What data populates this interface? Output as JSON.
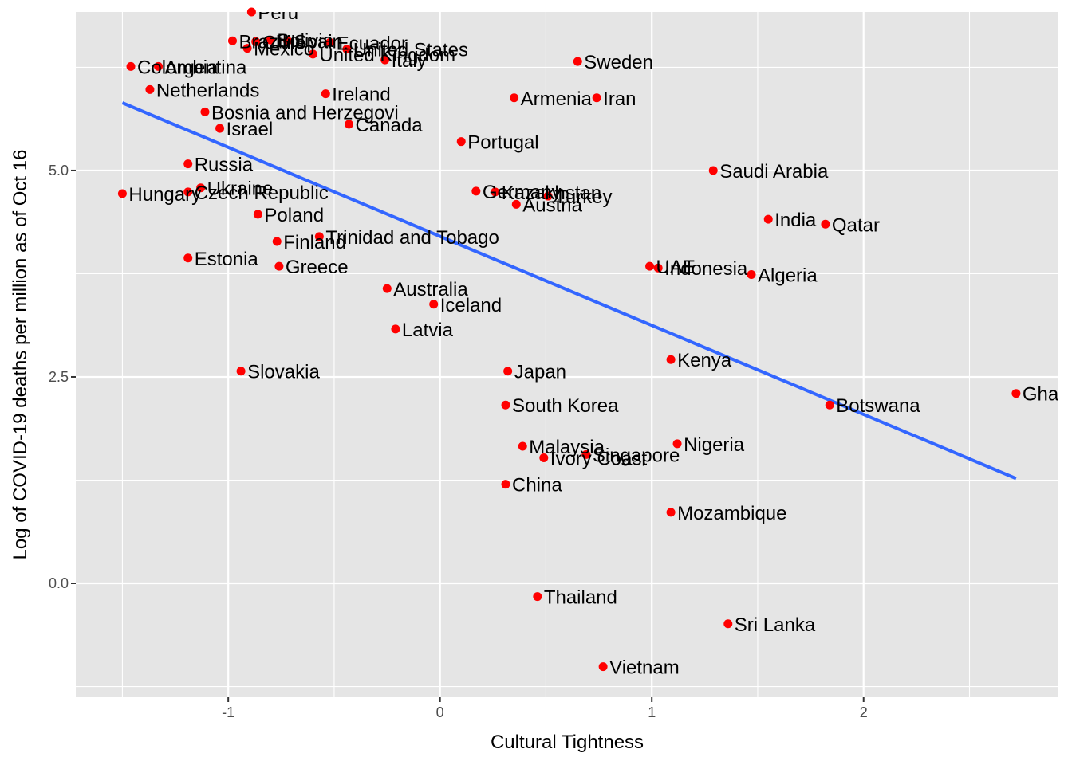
{
  "chart_data": {
    "type": "scatter",
    "title": "",
    "xlabel": "Cultural Tightness",
    "ylabel": "Log of COVID-19 deaths per million as of Oct 16",
    "xlim": [
      -1.72,
      2.92
    ],
    "ylim": [
      -1.38,
      6.92
    ],
    "x_ticks": [
      -1,
      0,
      1,
      2
    ],
    "x_tick_labels": [
      "-1",
      "0",
      "1",
      "2"
    ],
    "y_ticks": [
      0.0,
      2.5,
      5.0
    ],
    "y_tick_labels": [
      "0.0",
      "2.5",
      "5.0"
    ],
    "grid": true,
    "legend": "none",
    "colors": {
      "panel": "#e5e5e5",
      "grid": "#ffffff",
      "point": "#ff0000",
      "trend": "#3366ff",
      "text": "#000000",
      "tick_text": "#4d4d4d",
      "tick_mark": "#333333"
    },
    "points": [
      {
        "label": "Peru",
        "x": -0.89,
        "y": 6.92
      },
      {
        "label": "Brazil",
        "x": -0.98,
        "y": 6.57
      },
      {
        "label": "Chile",
        "x": -0.87,
        "y": 6.56
      },
      {
        "label": "Bolivia",
        "x": -0.8,
        "y": 6.58
      },
      {
        "label": "Spain",
        "x": -0.72,
        "y": 6.57
      },
      {
        "label": "Ecuador",
        "x": -0.52,
        "y": 6.55
      },
      {
        "label": "Mexico",
        "x": -0.91,
        "y": 6.48
      },
      {
        "label": "United States",
        "x": -0.44,
        "y": 6.47
      },
      {
        "label": "United Kingdom",
        "x": -0.6,
        "y": 6.41
      },
      {
        "label": "Italy",
        "x": -0.26,
        "y": 6.34
      },
      {
        "label": "Colombia",
        "x": -1.46,
        "y": 6.26
      },
      {
        "label": "Argentina",
        "x": -1.33,
        "y": 6.26
      },
      {
        "label": "Sweden",
        "x": 0.65,
        "y": 6.32
      },
      {
        "label": "Netherlands",
        "x": -1.37,
        "y": 5.98
      },
      {
        "label": "Ireland",
        "x": -0.54,
        "y": 5.93
      },
      {
        "label": "Armenia",
        "x": 0.35,
        "y": 5.88
      },
      {
        "label": "Iran",
        "x": 0.74,
        "y": 5.88
      },
      {
        "label": "Bosnia and Herzegovi",
        "x": -1.11,
        "y": 5.71
      },
      {
        "label": "Canada",
        "x": -0.43,
        "y": 5.56
      },
      {
        "label": "Israel",
        "x": -1.04,
        "y": 5.51
      },
      {
        "label": "Portugal",
        "x": 0.1,
        "y": 5.35
      },
      {
        "label": "Russia",
        "x": -1.19,
        "y": 5.08
      },
      {
        "label": "Saudi Arabia",
        "x": 1.29,
        "y": 5.0
      },
      {
        "label": "Ukraine",
        "x": -1.13,
        "y": 4.79
      },
      {
        "label": "Czech Republic",
        "x": -1.19,
        "y": 4.74
      },
      {
        "label": "Hungary",
        "x": -1.5,
        "y": 4.72
      },
      {
        "label": "Germany",
        "x": 0.17,
        "y": 4.75
      },
      {
        "label": "Kazakhstan",
        "x": 0.26,
        "y": 4.74
      },
      {
        "label": "Turkey",
        "x": 0.51,
        "y": 4.69
      },
      {
        "label": "Austria",
        "x": 0.36,
        "y": 4.59
      },
      {
        "label": "Poland",
        "x": -0.86,
        "y": 4.47
      },
      {
        "label": "India",
        "x": 1.55,
        "y": 4.41
      },
      {
        "label": "Qatar",
        "x": 1.82,
        "y": 4.35
      },
      {
        "label": "Trinidad and Tobago",
        "x": -0.57,
        "y": 4.2
      },
      {
        "label": "Finland",
        "x": -0.77,
        "y": 4.14
      },
      {
        "label": "Estonia",
        "x": -1.19,
        "y": 3.94
      },
      {
        "label": "Greece",
        "x": -0.76,
        "y": 3.84
      },
      {
        "label": "UAE",
        "x": 0.99,
        "y": 3.84
      },
      {
        "label": "Indonesia",
        "x": 1.03,
        "y": 3.82
      },
      {
        "label": "Algeria",
        "x": 1.47,
        "y": 3.74
      },
      {
        "label": "Australia",
        "x": -0.25,
        "y": 3.57
      },
      {
        "label": "Iceland",
        "x": -0.03,
        "y": 3.38
      },
      {
        "label": "Latvia",
        "x": -0.21,
        "y": 3.08
      },
      {
        "label": "Kenya",
        "x": 1.09,
        "y": 2.71
      },
      {
        "label": "Slovakia",
        "x": -0.94,
        "y": 2.57
      },
      {
        "label": "Japan",
        "x": 0.32,
        "y": 2.57
      },
      {
        "label": "Ghana",
        "x": 2.72,
        "y": 2.3
      },
      {
        "label": "South Korea",
        "x": 0.31,
        "y": 2.16
      },
      {
        "label": "Botswana",
        "x": 1.84,
        "y": 2.16
      },
      {
        "label": "Nigeria",
        "x": 1.12,
        "y": 1.69
      },
      {
        "label": "Malaysia",
        "x": 0.39,
        "y": 1.66
      },
      {
        "label": "Singapore",
        "x": 0.69,
        "y": 1.56
      },
      {
        "label": "Ivory Coast",
        "x": 0.49,
        "y": 1.52
      },
      {
        "label": "China",
        "x": 0.31,
        "y": 1.2
      },
      {
        "label": "Mozambique",
        "x": 1.09,
        "y": 0.86
      },
      {
        "label": "Thailand",
        "x": 0.46,
        "y": -0.16
      },
      {
        "label": "Sri Lanka",
        "x": 1.36,
        "y": -0.49
      },
      {
        "label": "Vietnam",
        "x": 0.77,
        "y": -1.01
      }
    ],
    "trend_line": {
      "x": [
        -1.5,
        2.72
      ],
      "y": [
        5.82,
        1.27
      ]
    }
  }
}
